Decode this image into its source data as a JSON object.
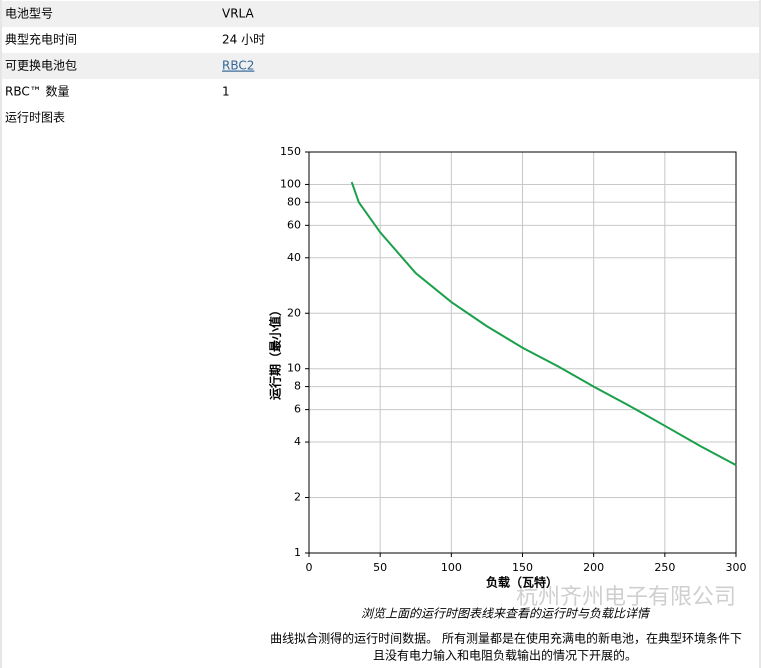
{
  "table": {
    "rows": [
      [
        "电池型号",
        "VRLA"
      ],
      [
        "典型充电时间",
        "24 小时"
      ],
      [
        "可更换电池包",
        "RBC2"
      ],
      [
        "RBC™ 数量",
        "1"
      ],
      [
        "运行时图表"
      ]
    ]
  },
  "chart_data": {
    "type": "line",
    "log_y": true,
    "grid": true,
    "x_label": "负载（瓦特）",
    "y_label": "运行期（最小值）",
    "x": [
      30,
      35,
      50,
      75,
      100,
      125,
      150,
      175,
      200,
      225,
      250,
      275,
      300
    ],
    "series": [
      {
        "name": "运行时",
        "color": "#1aa04a",
        "values": [
          103,
          80,
          55,
          33,
          23,
          17,
          13,
          10.3,
          8,
          6.3,
          4.9,
          3.8,
          3.0
        ]
      }
    ],
    "xlim": [
      0,
      300
    ],
    "xticks": [
      0,
      50,
      100,
      150,
      200,
      250,
      300
    ],
    "ylim": [
      1,
      150
    ],
    "yticks": [
      1,
      2,
      4,
      6,
      8,
      10,
      20,
      40,
      60,
      80,
      100,
      150
    ]
  },
  "caption": "浏览上面的运行时图表线来查看的运行时与负载比详情",
  "note": [
    "曲线拟合测得的运行时间数据。 所有测量都是在使用充满电的新电池，在典型环境条件下",
    "且没有电力输入和电阻负载输出的情况下开展的。"
  ],
  "watermark": "杭州齐州电子有限公司"
}
